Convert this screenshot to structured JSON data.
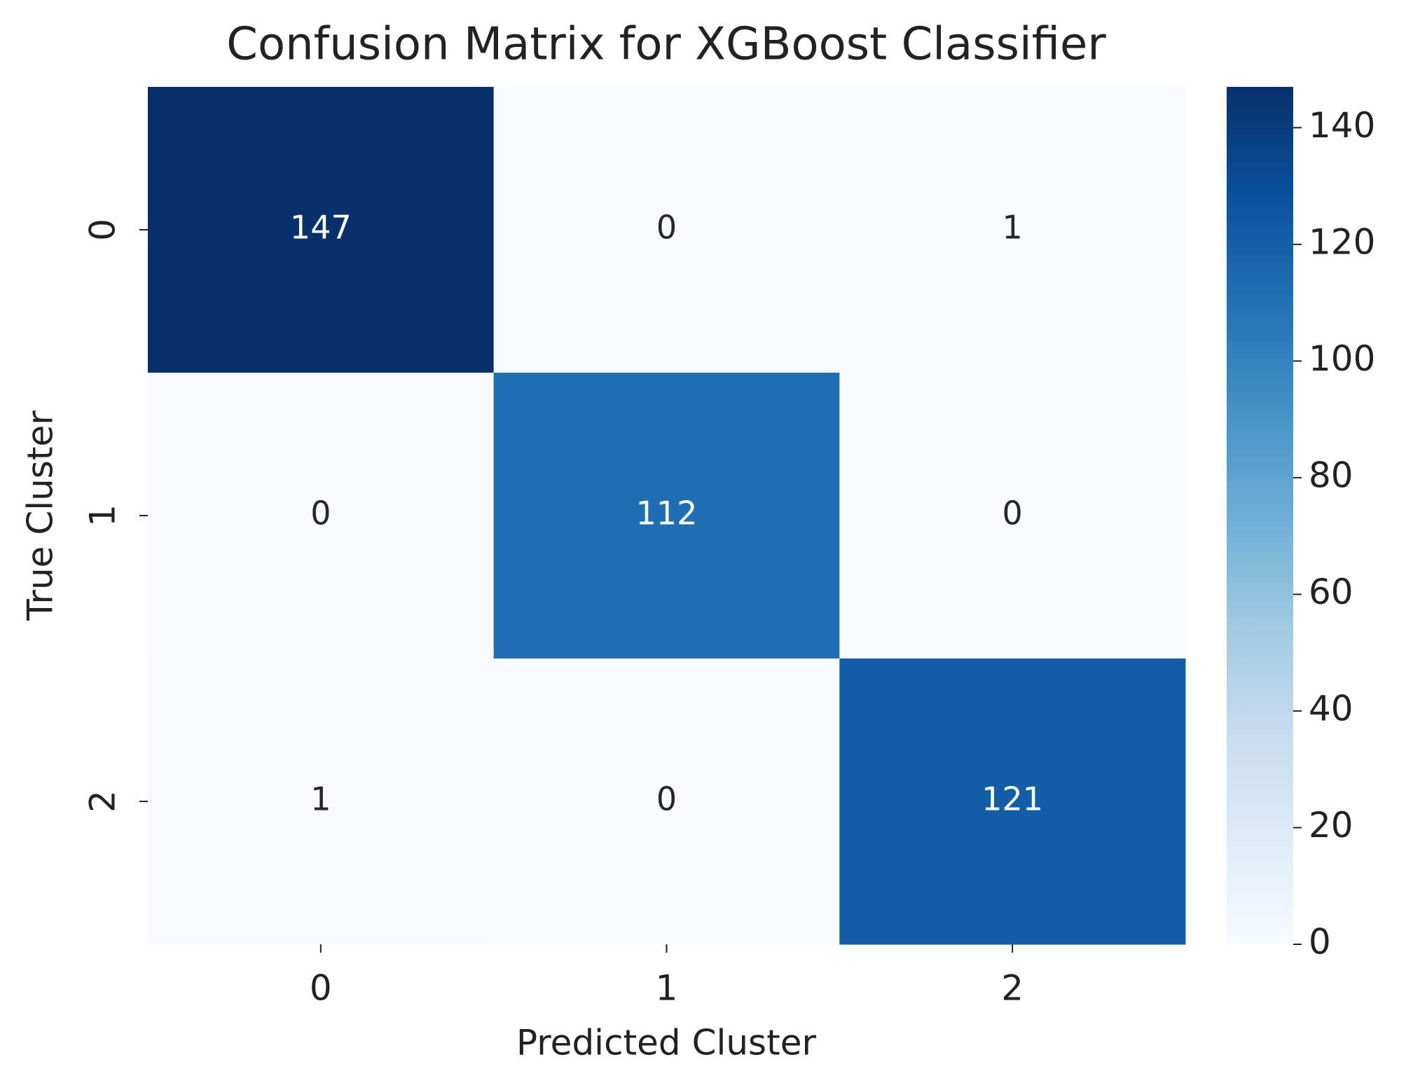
{
  "chart_data": {
    "type": "heatmap",
    "title": "Confusion Matrix for XGBoost Classifier",
    "x_label": "Predicted Cluster",
    "y_label": "True Cluster",
    "x_categories": [
      "0",
      "1",
      "2"
    ],
    "y_categories": [
      "0",
      "1",
      "2"
    ],
    "values": [
      [
        147,
        0,
        1
      ],
      [
        0,
        112,
        0
      ],
      [
        1,
        0,
        121
      ]
    ],
    "colormap": [
      "#f7fbff",
      "#deebf7",
      "#c6dbef",
      "#9ecae1",
      "#6baed6",
      "#4292c6",
      "#2171b5",
      "#08519c",
      "#08306b"
    ],
    "clim": [
      0,
      147
    ],
    "cticks": [
      0,
      20,
      40,
      60,
      80,
      100,
      120,
      140
    ]
  }
}
